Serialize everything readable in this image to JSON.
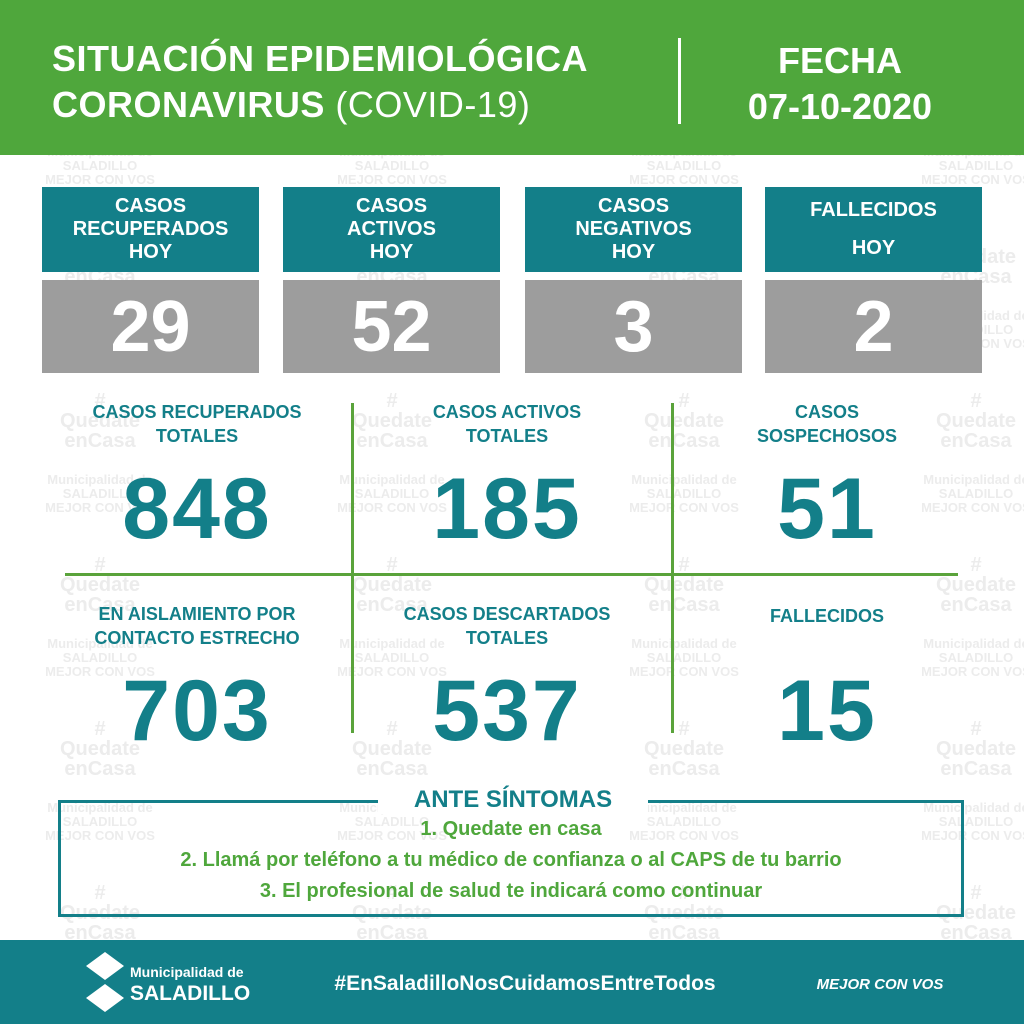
{
  "header": {
    "title_line1": "SITUACIÓN EPIDEMIOLÓGICA",
    "title_line2": "CORONAVIRUS",
    "title_line2_suffix": "(COVID-19)",
    "date_label": "FECHA",
    "date": "07-10-2020"
  },
  "watermark": {
    "lines": [
      "Municipalidad de",
      "SALADILLO",
      "#",
      "Quedate",
      "enCasa",
      "MEJOR CON VOS"
    ]
  },
  "daily": [
    {
      "label": [
        "CASOS",
        "RECUPERADOS",
        "HOY"
      ],
      "value": 29
    },
    {
      "label": [
        "CASOS",
        "ACTIVOS",
        "HOY"
      ],
      "value": 52
    },
    {
      "label": [
        "CASOS",
        "NEGATIVOS",
        "HOY"
      ],
      "value": 3
    },
    {
      "label": [
        "FALLECIDOS",
        "HOY"
      ],
      "value": 2
    }
  ],
  "totals": [
    {
      "label": [
        "CASOS RECUPERADOS",
        "TOTALES"
      ],
      "value": 848
    },
    {
      "label": [
        "CASOS ACTIVOS",
        "TOTALES"
      ],
      "value": 185
    },
    {
      "label": [
        "CASOS",
        "SOSPECHOSOS"
      ],
      "value": 51
    },
    {
      "label": [
        "EN AISLAMIENTO POR",
        "CONTACTO ESTRECHO"
      ],
      "value": 703
    },
    {
      "label": [
        "CASOS DESCARTADOS",
        "TOTALES"
      ],
      "value": 537
    },
    {
      "label": [
        "FALLECIDOS"
      ],
      "value": 15
    }
  ],
  "symptoms": {
    "title": "ANTE SÍNTOMAS",
    "items": [
      "1. Quedate en casa",
      "2. Llamá por teléfono a tu médico de confianza o al CAPS de tu barrio",
      "3. El profesional de salud te indicará como continuar"
    ]
  },
  "footer": {
    "logo_line1": "Municipalidad de",
    "logo_line2": "SALADILLO",
    "hashtag": "#EnSaladilloNosCuidamosEntreTodos",
    "slogan": "MEJOR CON VOS"
  }
}
